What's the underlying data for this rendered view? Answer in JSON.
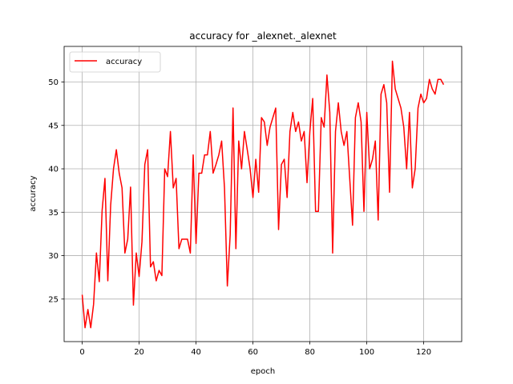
{
  "chart_data": {
    "type": "line",
    "title": "accuracy for _alexnet._alexnet",
    "xlabel": "epoch",
    "ylabel": "accuracy",
    "xlim": [
      -6.35,
      133.35
    ],
    "ylim": [
      20.1,
      54.1
    ],
    "xticks": [
      0,
      20,
      40,
      60,
      80,
      100,
      120
    ],
    "yticks": [
      25,
      30,
      35,
      40,
      45,
      50
    ],
    "grid": true,
    "legend_position": "top-left",
    "series": [
      {
        "name": "accuracy",
        "color": "#ff0000",
        "x": [
          0,
          1,
          2,
          3,
          4,
          5,
          6,
          7,
          8,
          9,
          10,
          11,
          12,
          13,
          14,
          15,
          16,
          17,
          18,
          19,
          20,
          21,
          22,
          23,
          24,
          25,
          26,
          27,
          28,
          29,
          30,
          31,
          32,
          33,
          34,
          35,
          36,
          37,
          38,
          39,
          40,
          41,
          42,
          43,
          44,
          45,
          46,
          47,
          48,
          49,
          50,
          51,
          52,
          53,
          54,
          55,
          56,
          57,
          58,
          59,
          60,
          61,
          62,
          63,
          64,
          65,
          66,
          67,
          68,
          69,
          70,
          71,
          72,
          73,
          74,
          75,
          76,
          77,
          78,
          79,
          80,
          81,
          82,
          83,
          84,
          85,
          86,
          87,
          88,
          89,
          90,
          91,
          92,
          93,
          94,
          95,
          96,
          97,
          98,
          99,
          100,
          101,
          102,
          103,
          104,
          105,
          106,
          107,
          108,
          109,
          110,
          111,
          112,
          113,
          114,
          115,
          116,
          117,
          118,
          119,
          120,
          121,
          122,
          123,
          124,
          125,
          126,
          127
        ],
        "values": [
          25.5,
          21.7,
          23.8,
          21.7,
          24.4,
          30.3,
          27.0,
          35.2,
          38.9,
          27.1,
          35.8,
          40.0,
          42.2,
          39.5,
          37.8,
          30.3,
          31.9,
          37.9,
          24.3,
          30.3,
          27.6,
          31.6,
          40.5,
          42.2,
          28.7,
          29.3,
          27.1,
          28.3,
          27.7,
          40.0,
          39.1,
          44.3,
          37.8,
          38.9,
          30.8,
          31.9,
          31.9,
          31.9,
          30.3,
          41.6,
          31.4,
          39.5,
          39.5,
          41.6,
          41.6,
          44.3,
          39.5,
          40.5,
          41.6,
          43.2,
          37.8,
          26.5,
          32.4,
          47.0,
          30.8,
          43.2,
          40.0,
          44.3,
          42.2,
          40.0,
          36.7,
          41.1,
          37.3,
          45.9,
          45.4,
          42.7,
          44.8,
          45.9,
          47.0,
          33.0,
          40.5,
          41.1,
          36.7,
          44.3,
          46.5,
          44.3,
          45.4,
          43.2,
          44.3,
          38.4,
          44.3,
          48.1,
          35.1,
          35.1,
          45.9,
          44.8,
          50.8,
          46.5,
          30.3,
          44.3,
          47.6,
          44.3,
          42.7,
          44.3,
          38.9,
          33.5,
          45.9,
          47.6,
          45.4,
          35.1,
          46.5,
          40.0,
          41.1,
          43.2,
          34.1,
          48.6,
          49.7,
          47.6,
          37.3,
          52.4,
          49.2,
          48.1,
          47.0,
          44.8,
          40.0,
          46.5,
          37.8,
          40.0,
          47.0,
          48.6,
          47.6,
          48.1,
          50.3,
          49.2,
          48.6,
          50.3,
          50.3,
          49.7
        ]
      }
    ]
  }
}
